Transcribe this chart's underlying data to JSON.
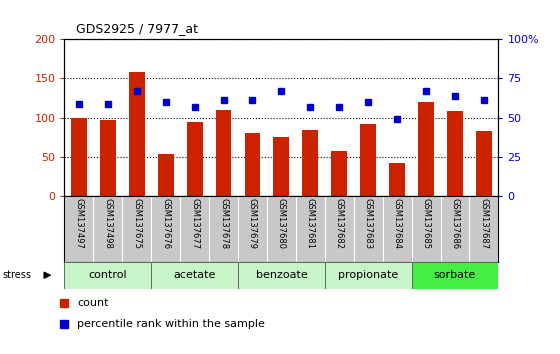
{
  "title": "GDS2925 / 7977_at",
  "samples": [
    "GSM137497",
    "GSM137498",
    "GSM137675",
    "GSM137676",
    "GSM137677",
    "GSM137678",
    "GSM137679",
    "GSM137680",
    "GSM137681",
    "GSM137682",
    "GSM137683",
    "GSM137684",
    "GSM137685",
    "GSM137686",
    "GSM137687"
  ],
  "counts": [
    100,
    97,
    158,
    54,
    94,
    110,
    80,
    76,
    84,
    58,
    92,
    43,
    120,
    108,
    83
  ],
  "percentiles": [
    59,
    59,
    67,
    60,
    57,
    61,
    61,
    67,
    57,
    57,
    60,
    49,
    67,
    64,
    61
  ],
  "groups": [
    {
      "label": "control",
      "start": 0,
      "end": 3,
      "color": "#c8f5c8"
    },
    {
      "label": "acetate",
      "start": 3,
      "end": 6,
      "color": "#c8f5c8"
    },
    {
      "label": "benzoate",
      "start": 6,
      "end": 9,
      "color": "#c8f5c8"
    },
    {
      "label": "propionate",
      "start": 9,
      "end": 12,
      "color": "#c8f5c8"
    },
    {
      "label": "sorbate",
      "start": 12,
      "end": 15,
      "color": "#44ee44"
    }
  ],
  "bar_color": "#cc2200",
  "dot_color": "#0000cc",
  "ylim_left": [
    0,
    200
  ],
  "ylim_right": [
    0,
    100
  ],
  "yticks_left": [
    0,
    50,
    100,
    150,
    200
  ],
  "ytick_labels_left": [
    "0",
    "50",
    "100",
    "150",
    "200"
  ],
  "yticks_right": [
    0,
    25,
    50,
    75,
    100
  ],
  "ytick_labels_right": [
    "0",
    "25",
    "50",
    "75",
    "100%"
  ],
  "stress_label": "stress",
  "sample_bg_color": "#c8c8c8",
  "plot_bg": "#ffffff",
  "legend_count": "count",
  "legend_pct": "percentile rank within the sample"
}
